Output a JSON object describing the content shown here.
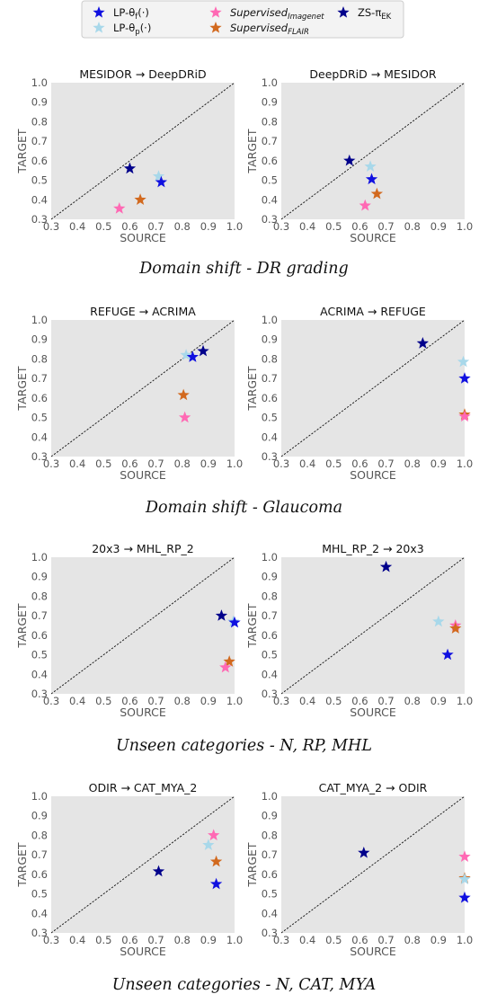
{
  "legend": [
    {
      "key": "lp_theta_f",
      "text": "LP-θ",
      "sub": "f",
      "suffix": "(·)",
      "italic": false,
      "color": "#1010e0"
    },
    {
      "key": "lp_theta_p",
      "text": "LP-θ",
      "sub": "p",
      "suffix": "(·)",
      "italic": false,
      "color": "#a8d8ea"
    },
    {
      "key": "sup_imagenet",
      "text": "Supervised",
      "sub": "Imagenet",
      "suffix": "",
      "italic": true,
      "color": "#ff69b4"
    },
    {
      "key": "sup_flair",
      "text": "Supervised",
      "sub": "FLAIR",
      "suffix": "",
      "italic": true,
      "color": "#d2691e"
    },
    {
      "key": "zs_pi_ek",
      "text": "ZS-π",
      "sub": "EK",
      "suffix": "",
      "italic": false,
      "color": "#00008b"
    }
  ],
  "sections": [
    {
      "caption": "Domain shift - DR grading"
    },
    {
      "caption": "Domain shift - Glaucoma"
    },
    {
      "caption": "Unseen categories - N, RP, MHL"
    },
    {
      "caption": "Unseen categories - N, CAT, MYA"
    }
  ],
  "chart_data": [
    {
      "type": "scatter",
      "title": "MESIDOR → DeepDRiD",
      "xlabel": "SOURCE",
      "ylabel": "TARGET",
      "xlim": [
        0.3,
        1.0
      ],
      "ylim": [
        0.3,
        1.0
      ],
      "grid": false,
      "diagonal": true,
      "xticks": [
        "0.3",
        "0.4",
        "0.5",
        "0.6",
        "0.7",
        "0.8",
        "0.9",
        "1.0"
      ],
      "yticks": [
        "0.3",
        "0.4",
        "0.5",
        "0.6",
        "0.7",
        "0.8",
        "0.9",
        "1.0"
      ],
      "points": [
        {
          "series": "zs_pi_ek",
          "x": 0.6,
          "y": 0.56
        },
        {
          "series": "lp_theta_p",
          "x": 0.71,
          "y": 0.52
        },
        {
          "series": "lp_theta_f",
          "x": 0.72,
          "y": 0.49
        },
        {
          "series": "sup_flair",
          "x": 0.64,
          "y": 0.4
        },
        {
          "series": "sup_imagenet",
          "x": 0.56,
          "y": 0.355
        }
      ]
    },
    {
      "type": "scatter",
      "title": "DeepDRiD → MESIDOR",
      "xlabel": "SOURCE",
      "ylabel": "TARGET",
      "xlim": [
        0.3,
        1.0
      ],
      "ylim": [
        0.3,
        1.0
      ],
      "grid": false,
      "diagonal": true,
      "xticks": [
        "0.3",
        "0.4",
        "0.5",
        "0.6",
        "0.7",
        "0.8",
        "0.9",
        "1.0"
      ],
      "yticks": [
        "0.3",
        "0.4",
        "0.5",
        "0.6",
        "0.7",
        "0.8",
        "0.9",
        "1.0"
      ],
      "points": [
        {
          "series": "zs_pi_ek",
          "x": 0.56,
          "y": 0.6
        },
        {
          "series": "lp_theta_p",
          "x": 0.64,
          "y": 0.57
        },
        {
          "series": "lp_theta_f",
          "x": 0.645,
          "y": 0.505
        },
        {
          "series": "sup_flair",
          "x": 0.665,
          "y": 0.43
        },
        {
          "series": "sup_imagenet",
          "x": 0.62,
          "y": 0.37
        }
      ]
    },
    {
      "type": "scatter",
      "title": "REFUGE → ACRIMA",
      "xlabel": "SOURCE",
      "ylabel": "TARGET",
      "xlim": [
        0.3,
        1.0
      ],
      "ylim": [
        0.3,
        1.0
      ],
      "grid": false,
      "diagonal": true,
      "xticks": [
        "0.3",
        "0.4",
        "0.5",
        "0.6",
        "0.7",
        "0.8",
        "0.9",
        "1.0"
      ],
      "yticks": [
        "0.3",
        "0.4",
        "0.5",
        "0.6",
        "0.7",
        "0.8",
        "0.9",
        "1.0"
      ],
      "points": [
        {
          "series": "lp_theta_p",
          "x": 0.815,
          "y": 0.82
        },
        {
          "series": "lp_theta_f",
          "x": 0.84,
          "y": 0.81
        },
        {
          "series": "zs_pi_ek",
          "x": 0.88,
          "y": 0.84
        },
        {
          "series": "sup_flair",
          "x": 0.805,
          "y": 0.615
        },
        {
          "series": "sup_imagenet",
          "x": 0.81,
          "y": 0.5
        }
      ]
    },
    {
      "type": "scatter",
      "title": "ACRIMA → REFUGE",
      "xlabel": "SOURCE",
      "ylabel": "TARGET",
      "xlim": [
        0.3,
        1.0
      ],
      "ylim": [
        0.3,
        1.0
      ],
      "grid": false,
      "diagonal": true,
      "xticks": [
        "0.3",
        "0.4",
        "0.5",
        "0.6",
        "0.7",
        "0.8",
        "0.9",
        "1.0"
      ],
      "yticks": [
        "0.3",
        "0.4",
        "0.5",
        "0.6",
        "0.7",
        "0.8",
        "0.9",
        "1.0"
      ],
      "points": [
        {
          "series": "zs_pi_ek",
          "x": 0.84,
          "y": 0.88
        },
        {
          "series": "lp_theta_p",
          "x": 0.995,
          "y": 0.785
        },
        {
          "series": "lp_theta_f",
          "x": 1.0,
          "y": 0.7
        },
        {
          "series": "sup_flair",
          "x": 1.0,
          "y": 0.515
        },
        {
          "series": "sup_imagenet",
          "x": 1.0,
          "y": 0.505
        }
      ]
    },
    {
      "type": "scatter",
      "title": "20x3 → MHL_RP_2",
      "xlabel": "SOURCE",
      "ylabel": "TARGET",
      "xlim": [
        0.3,
        1.0
      ],
      "ylim": [
        0.3,
        1.0
      ],
      "grid": false,
      "diagonal": true,
      "xticks": [
        "0.3",
        "0.4",
        "0.5",
        "0.6",
        "0.7",
        "0.8",
        "0.9",
        "1.0"
      ],
      "yticks": [
        "0.3",
        "0.4",
        "0.5",
        "0.6",
        "0.7",
        "0.8",
        "0.9",
        "1.0"
      ],
      "points": [
        {
          "series": "zs_pi_ek",
          "x": 0.95,
          "y": 0.7
        },
        {
          "series": "lp_theta_p",
          "x": 0.995,
          "y": 0.67
        },
        {
          "series": "lp_theta_f",
          "x": 1.0,
          "y": 0.665
        },
        {
          "series": "sup_flair",
          "x": 0.98,
          "y": 0.465
        },
        {
          "series": "sup_imagenet",
          "x": 0.965,
          "y": 0.435
        }
      ]
    },
    {
      "type": "scatter",
      "title": "MHL_RP_2 → 20x3",
      "xlabel": "SOURCE",
      "ylabel": "TARGET",
      "xlim": [
        0.3,
        1.0
      ],
      "ylim": [
        0.3,
        1.0
      ],
      "grid": false,
      "diagonal": true,
      "xticks": [
        "0.3",
        "0.4",
        "0.5",
        "0.6",
        "0.7",
        "0.8",
        "0.9",
        "1.0"
      ],
      "yticks": [
        "0.3",
        "0.4",
        "0.5",
        "0.6",
        "0.7",
        "0.8",
        "0.9",
        "1.0"
      ],
      "points": [
        {
          "series": "zs_pi_ek",
          "x": 0.7,
          "y": 0.95
        },
        {
          "series": "lp_theta_p",
          "x": 0.9,
          "y": 0.67
        },
        {
          "series": "sup_imagenet",
          "x": 0.965,
          "y": 0.65
        },
        {
          "series": "sup_flair",
          "x": 0.965,
          "y": 0.635
        },
        {
          "series": "lp_theta_f",
          "x": 0.935,
          "y": 0.5
        }
      ]
    },
    {
      "type": "scatter",
      "title": "ODIR → CAT_MYA_2",
      "xlabel": "SOURCE",
      "ylabel": "TARGET",
      "xlim": [
        0.3,
        1.0
      ],
      "ylim": [
        0.3,
        1.0
      ],
      "grid": false,
      "diagonal": true,
      "xticks": [
        "0.3",
        "0.4",
        "0.5",
        "0.6",
        "0.7",
        "0.8",
        "0.9",
        "1.0"
      ],
      "yticks": [
        "0.3",
        "0.4",
        "0.5",
        "0.6",
        "0.7",
        "0.8",
        "0.9",
        "1.0"
      ],
      "points": [
        {
          "series": "sup_imagenet",
          "x": 0.92,
          "y": 0.8
        },
        {
          "series": "lp_theta_p",
          "x": 0.9,
          "y": 0.75
        },
        {
          "series": "sup_flair",
          "x": 0.93,
          "y": 0.665
        },
        {
          "series": "zs_pi_ek",
          "x": 0.71,
          "y": 0.615
        },
        {
          "series": "lp_theta_f",
          "x": 0.93,
          "y": 0.55
        }
      ]
    },
    {
      "type": "scatter",
      "title": "CAT_MYA_2 → ODIR",
      "xlabel": "SOURCE",
      "ylabel": "TARGET",
      "xlim": [
        0.3,
        1.0
      ],
      "ylim": [
        0.3,
        1.0
      ],
      "grid": false,
      "diagonal": true,
      "xticks": [
        "0.3",
        "0.4",
        "0.5",
        "0.6",
        "0.7",
        "0.8",
        "0.9",
        "1.0"
      ],
      "yticks": [
        "0.3",
        "0.4",
        "0.5",
        "0.6",
        "0.7",
        "0.8",
        "0.9",
        "1.0"
      ],
      "points": [
        {
          "series": "zs_pi_ek",
          "x": 0.615,
          "y": 0.71
        },
        {
          "series": "sup_imagenet",
          "x": 1.0,
          "y": 0.69
        },
        {
          "series": "sup_flair",
          "x": 1.0,
          "y": 0.58
        },
        {
          "series": "lp_theta_p",
          "x": 1.0,
          "y": 0.575
        },
        {
          "series": "lp_theta_f",
          "x": 1.0,
          "y": 0.48
        }
      ]
    }
  ]
}
